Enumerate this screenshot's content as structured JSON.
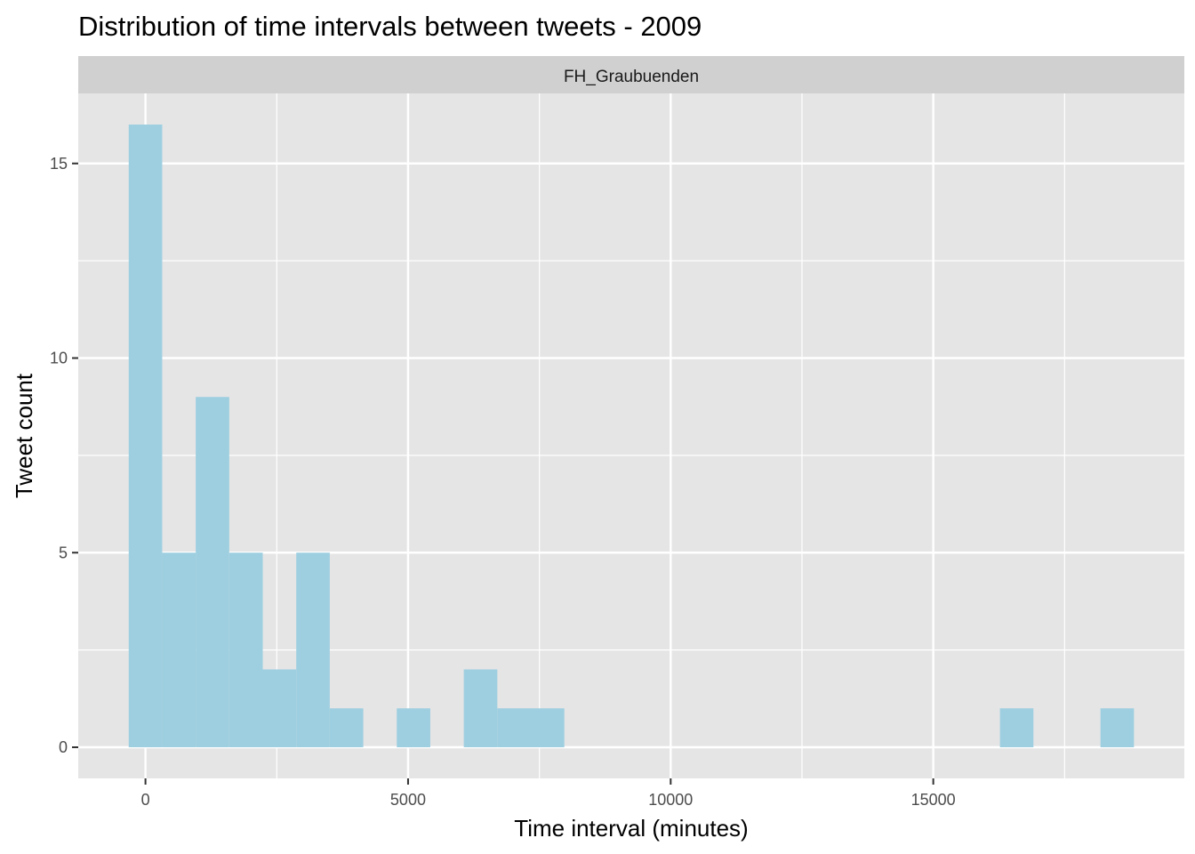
{
  "chart_data": {
    "type": "bar",
    "title": "Distribution of time intervals between tweets - 2009",
    "facet": "FH_Graubuenden",
    "xlabel": "Time interval (minutes)",
    "ylabel": "Tweet count",
    "bin_width": 638,
    "bins": [
      {
        "x_start": -319,
        "x_end": 319,
        "count": 16
      },
      {
        "x_start": 319,
        "x_end": 957,
        "count": 5
      },
      {
        "x_start": 957,
        "x_end": 1595,
        "count": 9
      },
      {
        "x_start": 1595,
        "x_end": 2233,
        "count": 5
      },
      {
        "x_start": 2233,
        "x_end": 2871,
        "count": 2
      },
      {
        "x_start": 2871,
        "x_end": 3509,
        "count": 5
      },
      {
        "x_start": 3509,
        "x_end": 4147,
        "count": 1
      },
      {
        "x_start": 4147,
        "x_end": 4785,
        "count": 0
      },
      {
        "x_start": 4785,
        "x_end": 5423,
        "count": 1
      },
      {
        "x_start": 5423,
        "x_end": 6061,
        "count": 0
      },
      {
        "x_start": 6061,
        "x_end": 6699,
        "count": 2
      },
      {
        "x_start": 6699,
        "x_end": 7337,
        "count": 1
      },
      {
        "x_start": 7337,
        "x_end": 7975,
        "count": 1
      },
      {
        "x_start": 16269,
        "x_end": 16907,
        "count": 1
      },
      {
        "x_start": 18183,
        "x_end": 18821,
        "count": 1
      }
    ],
    "xlim": [
      -1280,
      19780
    ],
    "ylim": [
      -0.8,
      16.8
    ],
    "x_ticks": [
      0,
      5000,
      10000,
      15000
    ],
    "x_minor_ticks": [
      2500,
      7500,
      12500,
      17500
    ],
    "y_ticks": [
      0,
      5,
      10,
      15
    ],
    "y_minor_ticks": [
      2.5,
      7.5,
      12.5
    ],
    "grid": true,
    "legend": "none",
    "colors": {
      "bar": "#9ecfe0",
      "panel": "#e5e5e5",
      "strip": "#d0d0d0",
      "grid": "#ffffff"
    }
  }
}
